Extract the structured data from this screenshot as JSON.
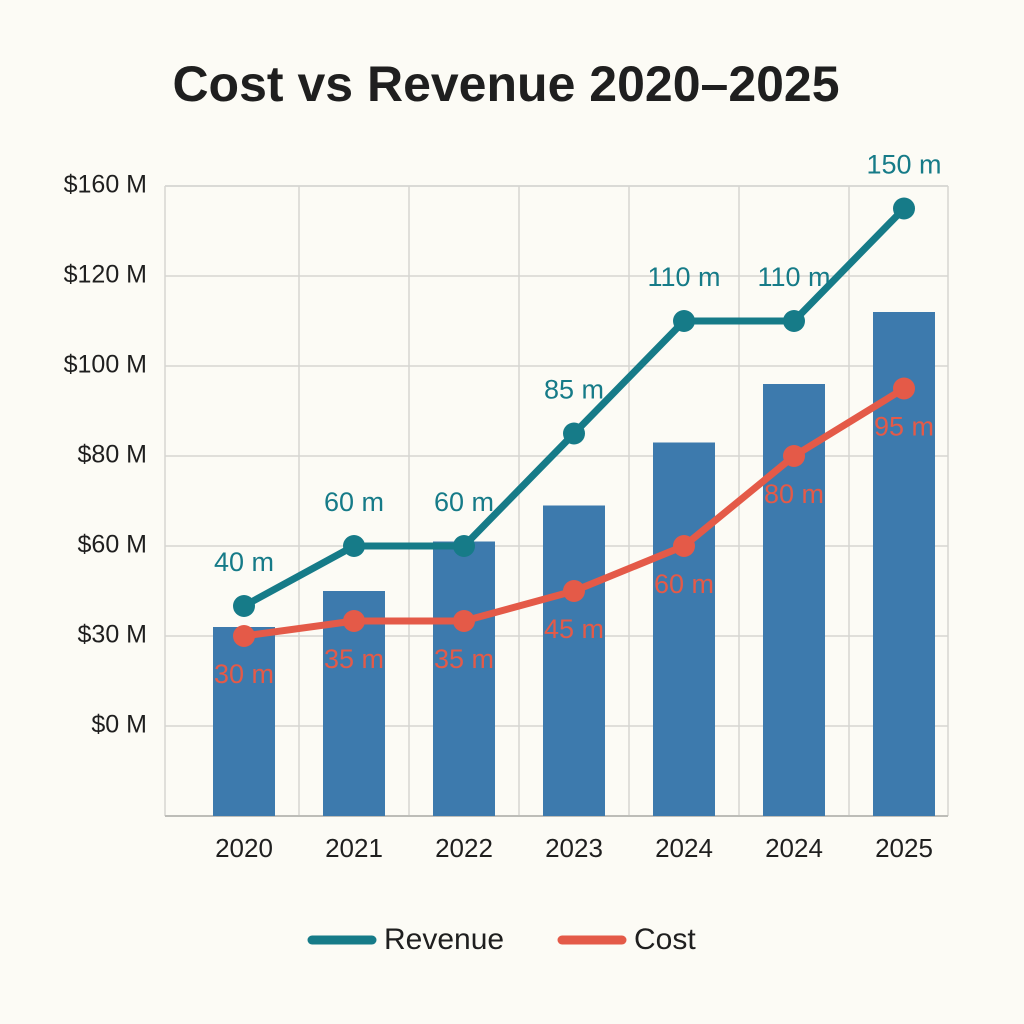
{
  "chart_data": {
    "type": "bar-line",
    "title": "Cost vs Revenue 2020–2025",
    "categories": [
      "2020",
      "2021",
      "2022",
      "2023",
      "2024",
      "2024",
      "2025"
    ],
    "bars": {
      "color": "#3d7aad",
      "values": [
        33,
        45,
        61,
        69,
        83,
        96,
        112
      ]
    },
    "series": [
      {
        "name": "Revenue",
        "color": "#167b88",
        "values": [
          40,
          60,
          60,
          85,
          110,
          110,
          150
        ],
        "value_labels": [
          "40 m",
          "60 m",
          "60 m",
          "85 m",
          "110 m",
          "110 m",
          "150 m"
        ]
      },
      {
        "name": "Cost",
        "color": "#e45a48",
        "values": [
          30,
          35,
          35,
          45,
          60,
          80,
          95
        ],
        "value_labels": [
          "30 m",
          "35 m",
          "35 m",
          "45 m",
          "60 m",
          "80 m",
          "95 m"
        ]
      }
    ],
    "ylim": [
      -30,
      160
    ],
    "yticks": [
      {
        "value": 0,
        "label": "$0 M"
      },
      {
        "value": 30,
        "label": "$30 M"
      },
      {
        "value": 60,
        "label": "$60 M"
      },
      {
        "value": 80,
        "label": "$80 M"
      },
      {
        "value": 100,
        "label": "$100 M"
      },
      {
        "value": 120,
        "label": "$120 M"
      },
      {
        "value": 160,
        "label": "$160 M"
      }
    ],
    "grid": true
  }
}
